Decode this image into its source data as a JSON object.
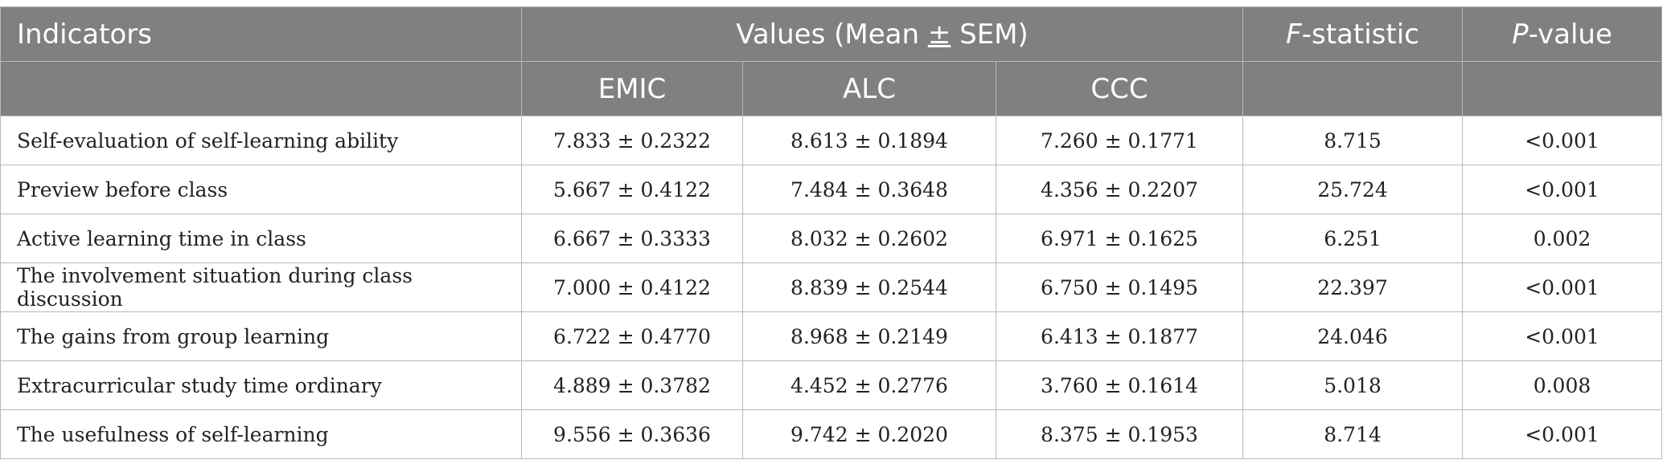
{
  "header": {
    "indicators": "Indicators",
    "values_prefix": "Values (Mean ",
    "values_pm": "±",
    "values_suffix": " SEM)",
    "f_italic": "F",
    "f_rest": "-statistic",
    "p_italic": "P",
    "p_rest": "-value",
    "groups": [
      "EMIC",
      "ALC",
      "CCC"
    ]
  },
  "rows": [
    {
      "indicator": "Self-evaluation of self-learning ability",
      "emic": "7.833 ± 0.2322",
      "alc": "8.613 ± 0.1894",
      "ccc": "7.260 ± 0.1771",
      "f": "8.715",
      "p": "<0.001"
    },
    {
      "indicator": "Preview before class",
      "emic": "5.667 ± 0.4122",
      "alc": "7.484 ± 0.3648",
      "ccc": "4.356 ± 0.2207",
      "f": "25.724",
      "p": "<0.001"
    },
    {
      "indicator": "Active learning time in class",
      "emic": "6.667 ± 0.3333",
      "alc": "8.032 ± 0.2602",
      "ccc": "6.971 ± 0.1625",
      "f": "6.251",
      "p": "0.002"
    },
    {
      "indicator": "The involvement situation during class discussion",
      "emic": "7.000 ± 0.4122",
      "alc": "8.839 ± 0.2544",
      "ccc": "6.750 ± 0.1495",
      "f": "22.397",
      "p": "<0.001"
    },
    {
      "indicator": "The gains from group learning",
      "emic": "6.722 ± 0.4770",
      "alc": "8.968 ± 0.2149",
      "ccc": "6.413 ± 0.1877",
      "f": "24.046",
      "p": "<0.001"
    },
    {
      "indicator": "Extracurricular study time ordinary",
      "emic": "4.889 ± 0.3782",
      "alc": "4.452 ± 0.2776",
      "ccc": "3.760 ± 0.1614",
      "f": "5.018",
      "p": "0.008"
    },
    {
      "indicator": "The usefulness of self-learning",
      "emic": "9.556 ± 0.3636",
      "alc": "9.742 ± 0.2020",
      "ccc": "8.375 ± 0.1953",
      "f": "8.714",
      "p": "<0.001"
    }
  ]
}
